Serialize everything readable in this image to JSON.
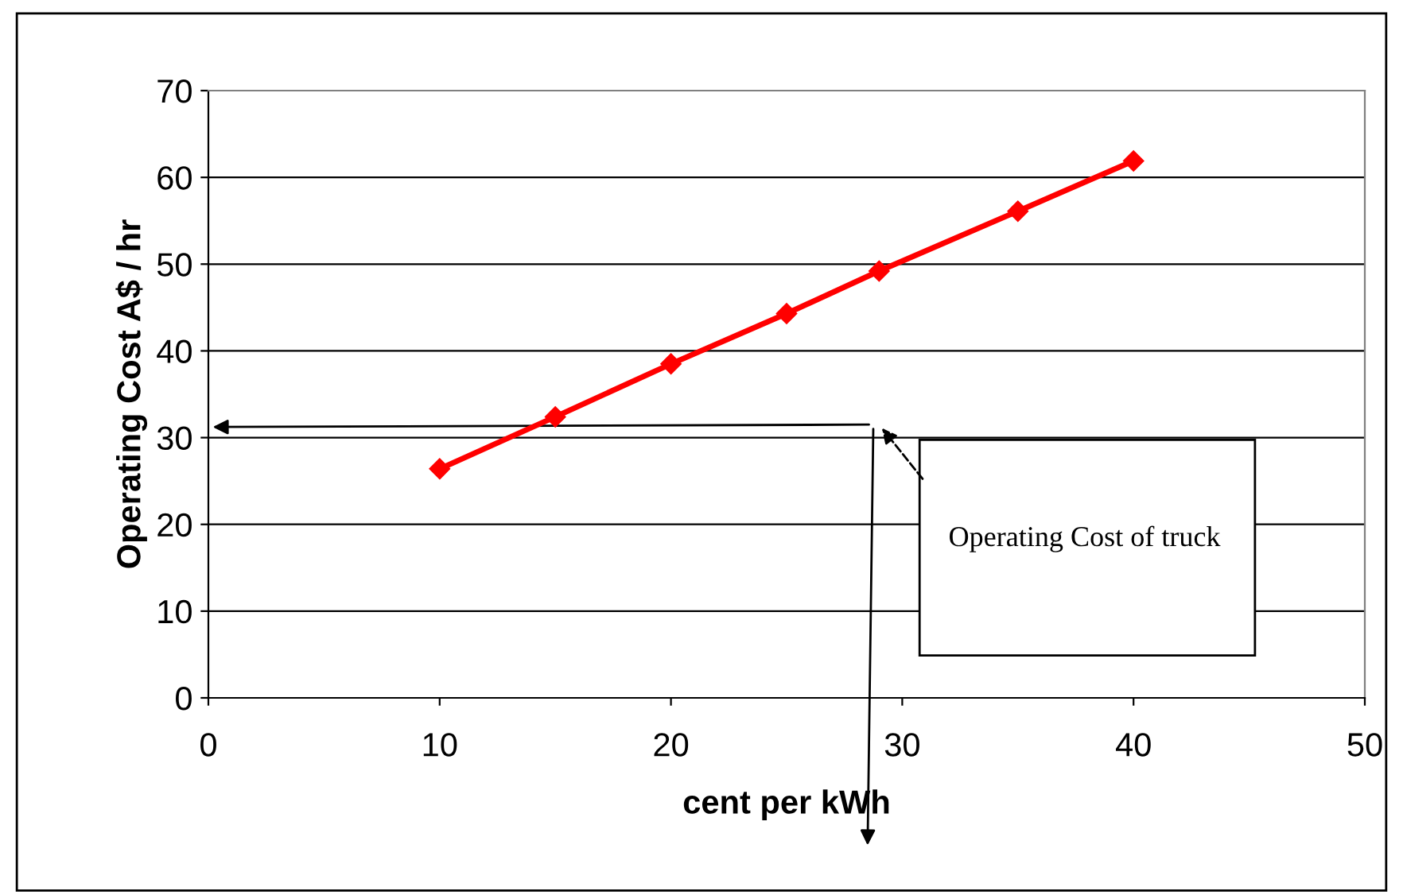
{
  "chart_data": {
    "type": "line",
    "xlabel": "cent per kWh",
    "ylabel": "Operating Cost A$ / hr",
    "x": [
      10,
      15,
      20,
      25,
      29,
      35,
      40
    ],
    "series": [
      {
        "color": "#ff0000",
        "values": [
          26.4,
          32.4,
          38.5,
          44.3,
          49.2,
          56.1,
          61.9
        ]
      }
    ],
    "xlim": [
      0,
      50
    ],
    "ylim": [
      0,
      70
    ],
    "xticks": [
      0,
      10,
      20,
      30,
      40,
      50
    ],
    "yticks": [
      0,
      10,
      20,
      30,
      40,
      50,
      60,
      70
    ],
    "grid": "y",
    "marker": "diamond",
    "line_style": "solid",
    "legend": false,
    "annotations": [
      "Operating Cost of truck"
    ]
  }
}
